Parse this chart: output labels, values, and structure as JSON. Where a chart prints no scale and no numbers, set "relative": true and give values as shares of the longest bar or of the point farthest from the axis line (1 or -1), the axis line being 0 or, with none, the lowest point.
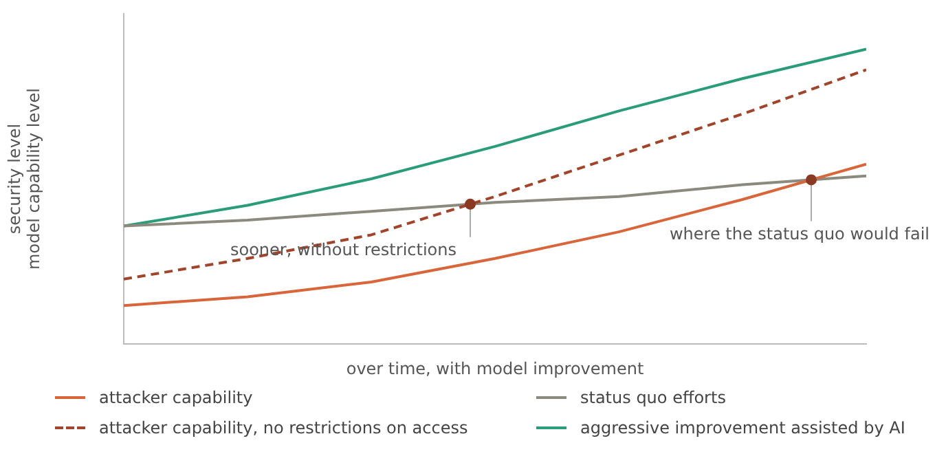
{
  "chart_data": {
    "type": "line",
    "relative": true,
    "xlabel": "over time, with model improvement",
    "ylabel": "security level\nmodel capability level",
    "categories": [
      null,
      null,
      null,
      null,
      null,
      null,
      null
    ],
    "grid": false,
    "legend": "bottom",
    "marker": "none",
    "series": [
      {
        "name": "attacker capability",
        "color": "#d9653b",
        "values": [
          0.13,
          0.16,
          0.21,
          0.29,
          0.38,
          0.49,
          0.61
        ]
      },
      {
        "name": "attacker capability, no restrictions on access",
        "color": "#a0442b",
        "line_style": "dashed",
        "values": [
          0.22,
          0.29,
          0.37,
          0.5,
          0.64,
          0.78,
          0.93
        ]
      },
      {
        "name": "status quo efforts",
        "color": "#8c8a7e",
        "values": [
          0.4,
          0.42,
          0.45,
          0.48,
          0.5,
          0.54,
          0.57
        ]
      },
      {
        "name": "aggressive improvement assisted by AI",
        "color": "#2a9d78",
        "values": [
          0.4,
          0.47,
          0.56,
          0.67,
          0.79,
          0.9,
          1
        ]
      }
    ],
    "annotations": [
      "sooner, without restrictions",
      "where the status quo would fail"
    ]
  }
}
